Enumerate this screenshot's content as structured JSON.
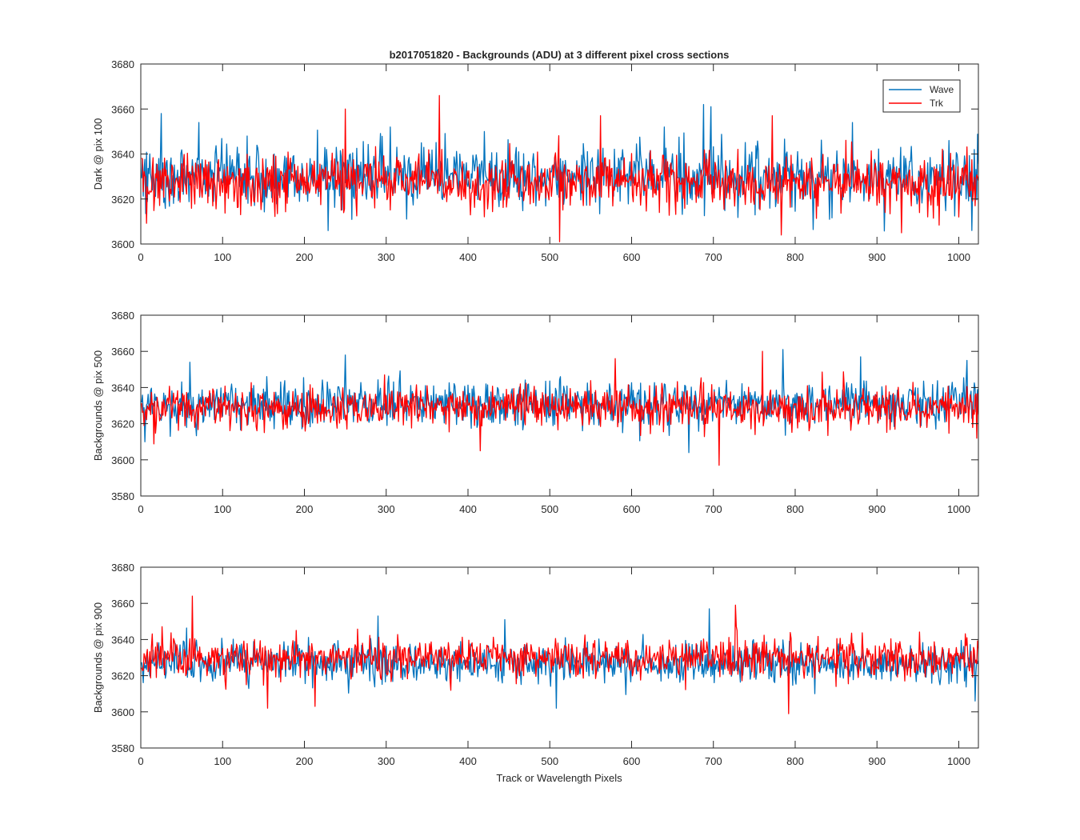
{
  "figure": {
    "title": "b2017051820 - Backgrounds (ADU) at 3 different pixel cross sections",
    "xlabel": "Track or Wavelength Pixels"
  },
  "legend": {
    "entries": [
      {
        "name": "Wave",
        "color": "#0072BD"
      },
      {
        "name": "Trk",
        "color": "#FF0000"
      }
    ],
    "placement": "top-right"
  },
  "chart_data": [
    {
      "type": "line",
      "title": "b2017051820 - Backgrounds (ADU) at 3 different pixel cross sections",
      "ylabel": "Dark @ pix 100",
      "xlabel": "",
      "xlim": [
        0,
        1024
      ],
      "ylim": [
        3600,
        3680
      ],
      "xticks": [
        0,
        100,
        200,
        300,
        400,
        500,
        600,
        700,
        800,
        900,
        1000
      ],
      "yticks": [
        3600,
        3620,
        3640,
        3660,
        3680
      ],
      "x": {
        "start": 1,
        "end": 1024,
        "step": 1
      },
      "legend": "top-right",
      "series": [
        {
          "name": "Wave",
          "color": "#0072BD",
          "center": 3630,
          "spread": 8.5,
          "extremes": [
            [
              25,
              3658
            ],
            [
              71,
              3654
            ],
            [
              130,
              3648
            ],
            [
              305,
              3652
            ],
            [
              420,
              3650
            ],
            [
              640,
              3652
            ],
            [
              688,
              3662
            ],
            [
              697,
              3661
            ],
            [
              870,
              3654
            ],
            [
              1016,
              3606
            ]
          ]
        },
        {
          "name": "Trk",
          "color": "#FF0000",
          "center": 3628,
          "spread": 7.5,
          "extremes": [
            [
              250,
              3660
            ],
            [
              365,
              3666
            ],
            [
              512,
              3601
            ],
            [
              562,
              3657
            ],
            [
              772,
              3657
            ],
            [
              783,
              3604
            ],
            [
              930,
              3605
            ],
            [
              1000,
              3612
            ]
          ]
        }
      ]
    },
    {
      "type": "line",
      "title": "",
      "ylabel": "Backgrounds @ pix 500",
      "xlabel": "",
      "xlim": [
        0,
        1024
      ],
      "ylim": [
        3580,
        3680
      ],
      "xticks": [
        0,
        100,
        200,
        300,
        400,
        500,
        600,
        700,
        800,
        900,
        1000
      ],
      "yticks": [
        3580,
        3600,
        3620,
        3640,
        3660,
        3680
      ],
      "x": {
        "start": 1,
        "end": 1024,
        "step": 1
      },
      "series": [
        {
          "name": "Wave",
          "color": "#0072BD",
          "center": 3631,
          "spread": 8,
          "extremes": [
            [
              5,
              3610
            ],
            [
              60,
              3654
            ],
            [
              250,
              3658
            ],
            [
              670,
              3604
            ],
            [
              785,
              3661
            ],
            [
              880,
              3657
            ],
            [
              1010,
              3655
            ]
          ]
        },
        {
          "name": "Trk",
          "color": "#FF0000",
          "center": 3629,
          "spread": 7,
          "extremes": [
            [
              415,
              3605
            ],
            [
              580,
              3656
            ],
            [
              707,
              3597
            ],
            [
              760,
              3660
            ],
            [
              1022,
              3612
            ]
          ]
        }
      ]
    },
    {
      "type": "line",
      "title": "",
      "ylabel": "Backgrounds @ pix 900",
      "xlabel": "Track or Wavelength Pixels",
      "xlim": [
        0,
        1024
      ],
      "ylim": [
        3580,
        3680
      ],
      "xticks": [
        0,
        100,
        200,
        300,
        400,
        500,
        600,
        700,
        800,
        900,
        1000
      ],
      "yticks": [
        3580,
        3600,
        3620,
        3640,
        3660,
        3680
      ],
      "x": {
        "start": 1,
        "end": 1024,
        "step": 1
      },
      "series": [
        {
          "name": "Wave",
          "color": "#0072BD",
          "center": 3627,
          "spread": 7,
          "extremes": [
            [
              290,
              3653
            ],
            [
              445,
              3651
            ],
            [
              508,
              3602
            ],
            [
              695,
              3657
            ],
            [
              1020,
              3606
            ]
          ]
        },
        {
          "name": "Trk",
          "color": "#FF0000",
          "center": 3630,
          "spread": 7,
          "extremes": [
            [
              63,
              3664
            ],
            [
              155,
              3602
            ],
            [
              213,
              3603
            ],
            [
              727,
              3659
            ],
            [
              792,
              3599
            ]
          ]
        }
      ]
    }
  ]
}
